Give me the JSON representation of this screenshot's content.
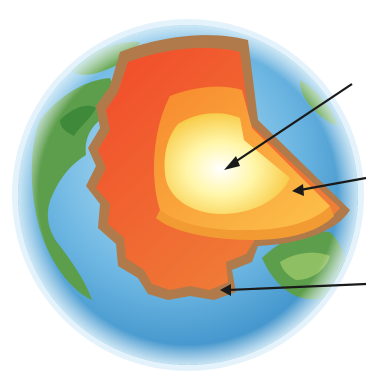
{
  "diagram": {
    "subject": "earth-cutaway",
    "layers": [
      {
        "name": "inner-core",
        "color": "#fff7b0"
      },
      {
        "name": "outer-core",
        "color": "#fbb43a"
      },
      {
        "name": "mantle",
        "color": "#ef6d34"
      },
      {
        "name": "crust",
        "color": "#b07a4a"
      }
    ],
    "surface": {
      "ocean": "#4aa3d8",
      "land": "#5d9e4c"
    },
    "pointers": [
      {
        "target": "inner-core"
      },
      {
        "target": "outer-core"
      },
      {
        "target": "crust"
      }
    ]
  }
}
